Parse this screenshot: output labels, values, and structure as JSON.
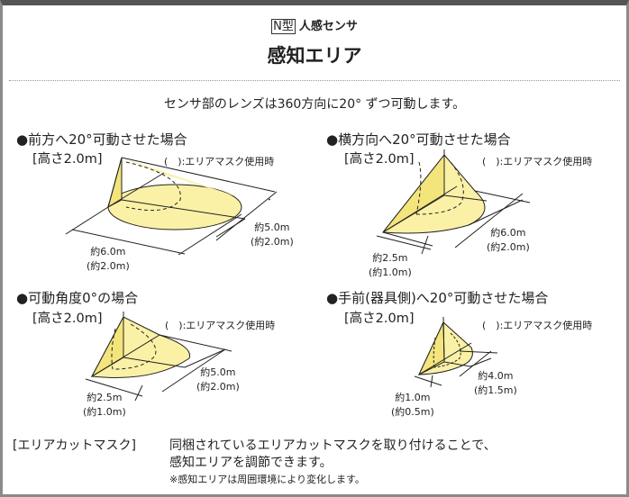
{
  "header": {
    "type_badge": "N型",
    "kind": "人感センサ",
    "title": "感知エリア",
    "lead": "センサ部のレンズは360方向に20° ずつ可動します。"
  },
  "colors": {
    "area_fill": "#fbf1a6",
    "cone_fill": "#f3e47c",
    "line": "#222222",
    "frame": "#8a8a8a"
  },
  "panels": [
    {
      "title": "●前方へ20°可動させた場合",
      "height": "[高さ2.0m]",
      "mask_note": "(　):エリアマスク使用時",
      "dim_a": "約5.0m",
      "dim_a_mask": "(約2.0m)",
      "dim_b": "約6.0m",
      "dim_b_mask": "(約2.0m)"
    },
    {
      "title": "●横方向へ20°可動させた場合",
      "height": "[高さ2.0m]",
      "mask_note": "(　):エリアマスク使用時",
      "dim_a": "約6.0m",
      "dim_a_mask": "(約2.0m)",
      "dim_b": "約2.5m",
      "dim_b_mask": "(約1.0m)"
    },
    {
      "title": "●可動角度0°の場合",
      "height": "[高さ2.0m]",
      "mask_note": "(　):エリアマスク使用時",
      "dim_a": "約5.0m",
      "dim_a_mask": "(約2.0m)",
      "dim_b": "約2.5m",
      "dim_b_mask": "(約1.0m)"
    },
    {
      "title": "●手前(器具側)へ20°可動させた場合",
      "height": "[高さ2.0m]",
      "mask_note": "(　):エリアマスク使用時",
      "dim_a": "約4.0m",
      "dim_a_mask": "(約1.5m)",
      "dim_b": "約1.0m",
      "dim_b_mask": "(約0.5m)"
    }
  ],
  "footer": {
    "label": "[エリアカットマスク]",
    "line1": "同梱されているエリアカットマスクを取り付けることで、",
    "line2": "感知エリアを調節できます。",
    "note": "※感知エリアは周囲環境により変化します。"
  }
}
